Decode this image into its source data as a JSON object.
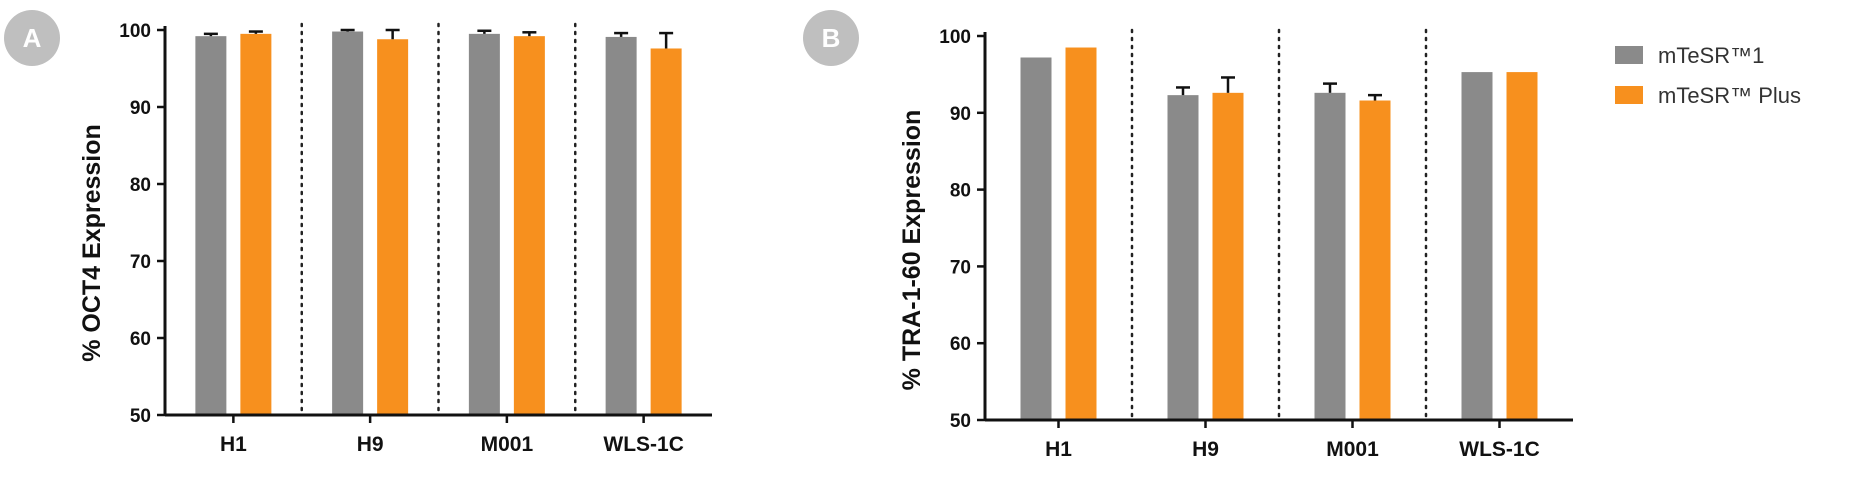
{
  "legend": {
    "position": "top-right",
    "items": [
      {
        "label": "mTeSR™1",
        "color": "#8a8a8a"
      },
      {
        "label": "mTeSR™ Plus",
        "color": "#f7901e"
      }
    ]
  },
  "chart_data": [
    {
      "panel": "A",
      "type": "bar",
      "ylabel": "% OCT4 Expression",
      "ylim": [
        50,
        100
      ],
      "yticks": [
        50,
        60,
        70,
        80,
        90,
        100
      ],
      "categories": [
        "H1",
        "H9",
        "M001",
        "WLS-1C"
      ],
      "series": [
        {
          "name": "mTeSR™1",
          "color": "#8a8a8a",
          "values": [
            99.2,
            99.8,
            99.5,
            99.1
          ],
          "errors": [
            0.3,
            0.2,
            0.4,
            0.5
          ]
        },
        {
          "name": "mTeSR™ Plus",
          "color": "#f7901e",
          "values": [
            99.5,
            98.8,
            99.2,
            97.6
          ],
          "errors": [
            0.3,
            1.2,
            0.5,
            2.0
          ]
        }
      ],
      "separators": "dotted",
      "grid": false
    },
    {
      "panel": "B",
      "type": "bar",
      "ylabel": "% TRA-1-60 Expression",
      "ylim": [
        50,
        100
      ],
      "yticks": [
        50,
        60,
        70,
        80,
        90,
        100
      ],
      "categories": [
        "H1",
        "H9",
        "M001",
        "WLS-1C"
      ],
      "series": [
        {
          "name": "mTeSR™1",
          "color": "#8a8a8a",
          "values": [
            97.2,
            92.3,
            92.6,
            95.3
          ],
          "errors": [
            0,
            1.0,
            1.2,
            0
          ]
        },
        {
          "name": "mTeSR™ Plus",
          "color": "#f7901e",
          "values": [
            98.5,
            92.6,
            91.6,
            95.3
          ],
          "errors": [
            0,
            2.0,
            0.7,
            0
          ]
        }
      ],
      "separators": "dotted",
      "grid": false
    }
  ]
}
